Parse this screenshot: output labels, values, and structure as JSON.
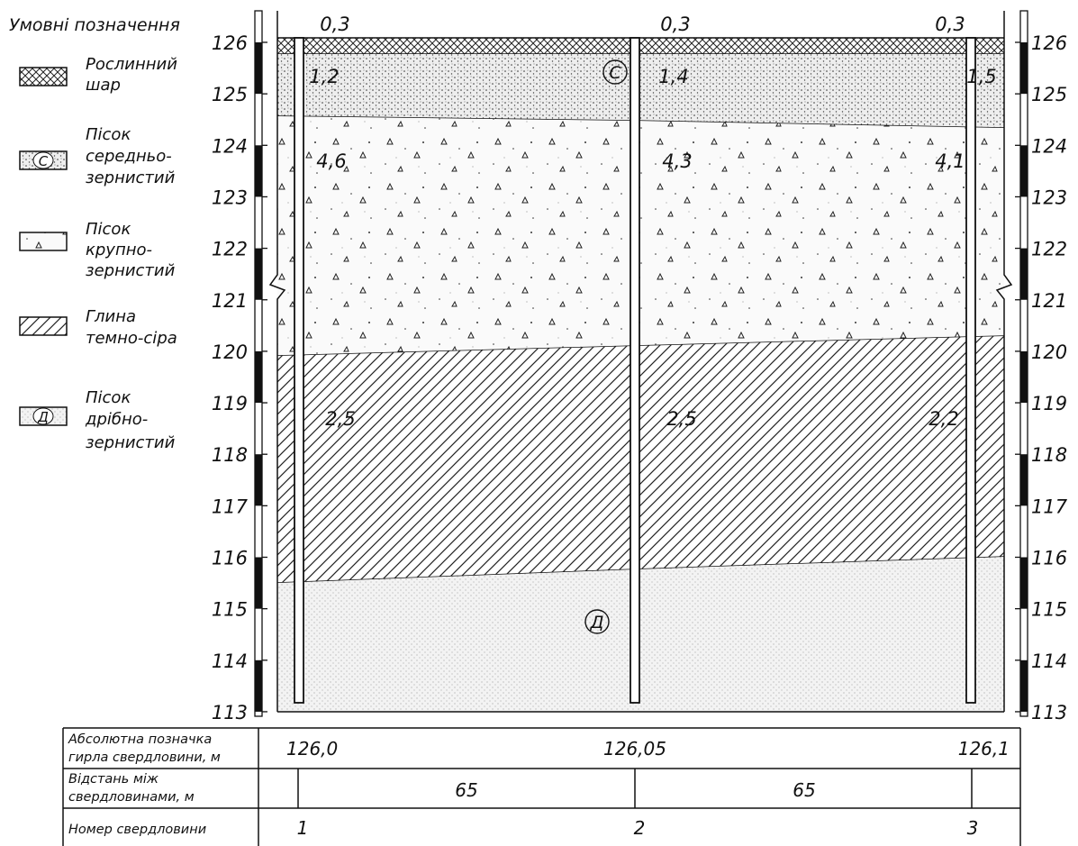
{
  "legend": {
    "title": "Умовні позначення",
    "items": [
      {
        "label": [
          "Рослинний",
          "шар"
        ]
      },
      {
        "label": [
          "Пісок",
          "середньо-",
          "зернистий"
        ],
        "symbol": "С"
      },
      {
        "label": [
          "Пісок",
          "крупно-",
          "зернистий"
        ]
      },
      {
        "label": [
          "Глина",
          "темно-сіра"
        ]
      },
      {
        "label": [
          "Пісок",
          "дрібно-",
          "зернистий"
        ],
        "symbol": "Д"
      }
    ]
  },
  "elevations": [
    126,
    125,
    124,
    123,
    122,
    121,
    120,
    119,
    118,
    117,
    116,
    115,
    114,
    113
  ],
  "section": {
    "layer_thickness": [
      [
        "0,3",
        "0,3",
        "0,3"
      ],
      [
        "1,2",
        "1,4",
        "1,5"
      ],
      [
        "4,6",
        "4,3",
        "4,1"
      ],
      [
        "2,5",
        "2,5",
        "2,2"
      ]
    ],
    "layer_symbols": [
      "С",
      "Д"
    ]
  },
  "table": {
    "rows": [
      {
        "label": [
          "Абсолютна позначка",
          "гирла свердловини, м"
        ],
        "values": [
          "126,0",
          "126,05",
          "126,1"
        ]
      },
      {
        "label": [
          "Відстань між",
          "свердловинами, м"
        ],
        "values": [
          "65",
          "65"
        ]
      },
      {
        "label": [
          "Номер свердловини"
        ],
        "values": [
          "1",
          "2",
          "3"
        ]
      }
    ]
  }
}
